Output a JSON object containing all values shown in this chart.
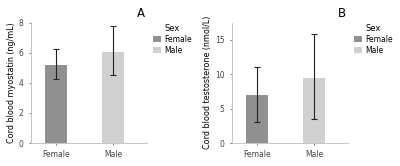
{
  "panel_A": {
    "title": "A",
    "ylabel": "Cord blood myostatin (ng/mL)",
    "xlabel_ticks": [
      "Female",
      "Male"
    ],
    "bar_values": [
      5.2,
      6.05
    ],
    "bar_errors_upper": [
      6.25,
      7.75
    ],
    "bar_errors_lower": [
      4.25,
      4.5
    ],
    "ylim": [
      0,
      8
    ],
    "yticks": [
      0,
      2,
      4,
      6,
      8
    ],
    "bar_colors": [
      "#909090",
      "#d0d0d0"
    ],
    "legend_title": "Sex",
    "legend_labels": [
      "Female",
      "Male"
    ],
    "legend_colors": [
      "#909090",
      "#d0d0d0"
    ]
  },
  "panel_B": {
    "title": "B",
    "ylabel": "Cord blood testosterone (nmol/L)",
    "xlabel_ticks": [
      "Female",
      "Male"
    ],
    "bar_values": [
      7.0,
      9.5
    ],
    "bar_errors_upper": [
      11.0,
      15.8
    ],
    "bar_errors_lower": [
      3.0,
      3.5
    ],
    "ylim": [
      0,
      17.5
    ],
    "yticks": [
      0,
      5,
      10,
      15
    ],
    "bar_colors": [
      "#909090",
      "#d0d0d0"
    ],
    "legend_title": "Sex",
    "legend_labels": [
      "Female",
      "Male"
    ],
    "legend_colors": [
      "#909090",
      "#d0d0d0"
    ]
  },
  "background_color": "#ffffff",
  "bar_width": 0.38,
  "fontsize_axis_label": 5.8,
  "fontsize_tick": 5.5,
  "fontsize_legend_title": 6.0,
  "fontsize_legend": 5.5,
  "fontsize_panel_label": 8.5
}
